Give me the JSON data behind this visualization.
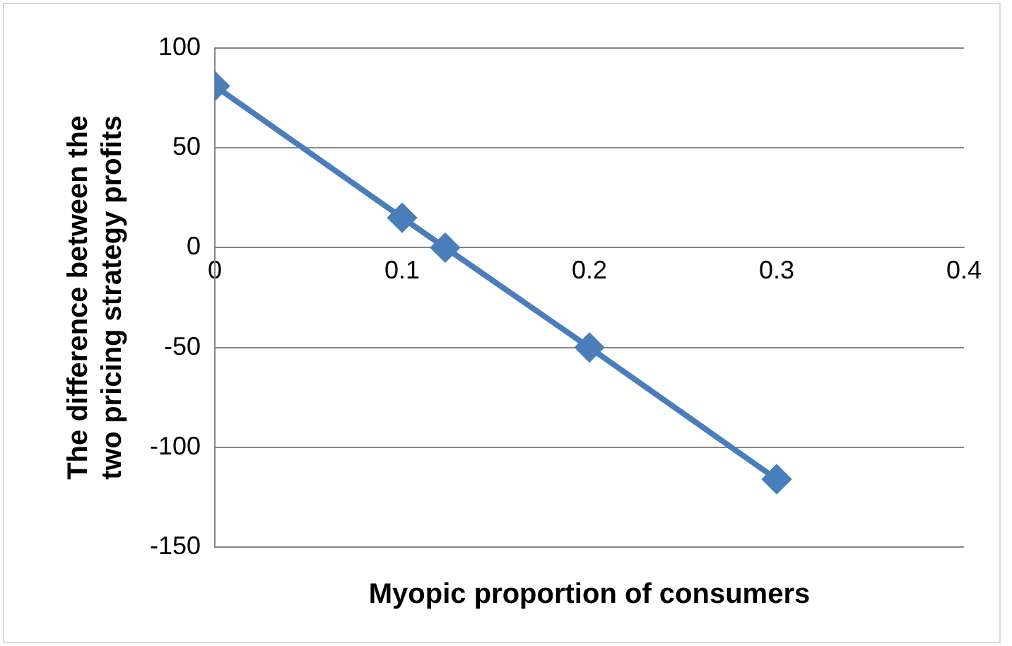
{
  "chart_data": {
    "type": "line",
    "xlabel": "Myopic proportion of consumers",
    "ylabel": "The difference between the two pricing strategy profits",
    "x": [
      0,
      0.1,
      0.123,
      0.2,
      0.3
    ],
    "series": [
      {
        "color": "#4a7ebb",
        "values": [
          81,
          15,
          0,
          -50,
          -116
        ]
      }
    ],
    "xlim": [
      0,
      0.4
    ],
    "xticks": [
      0,
      0.1,
      0.2,
      0.3,
      0.4
    ],
    "ylim": [
      -150,
      100
    ],
    "yticks": [
      -150,
      -100,
      -50,
      0,
      50,
      100
    ],
    "grid": "y",
    "legend": false,
    "marker": "diamond",
    "line_style": "solid"
  }
}
